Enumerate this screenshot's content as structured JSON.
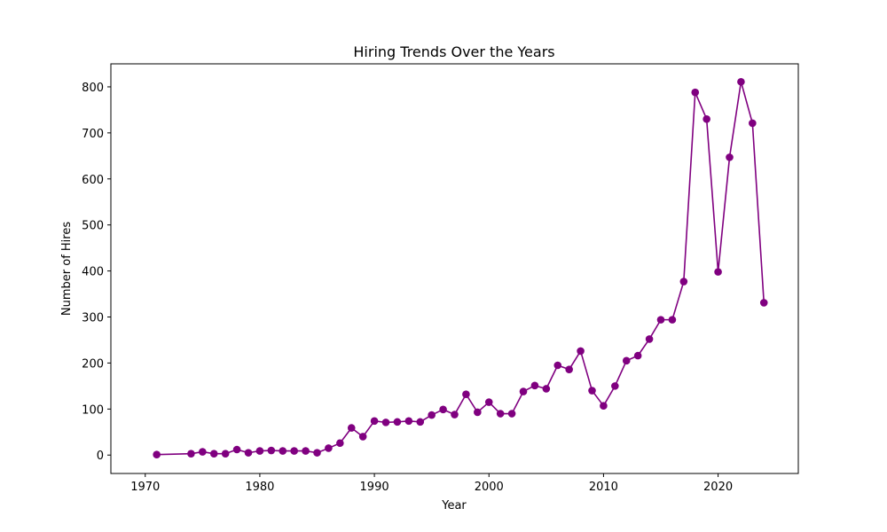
{
  "chart_data": {
    "type": "line",
    "title": "Hiring Trends Over the Years",
    "xlabel": "Year",
    "ylabel": "Number of Hires",
    "xlim": [
      1967,
      2027
    ],
    "ylim": [
      -40,
      850
    ],
    "xticks": [
      1970,
      1980,
      1990,
      2000,
      2010,
      2020
    ],
    "yticks": [
      0,
      100,
      200,
      300,
      400,
      500,
      600,
      700,
      800
    ],
    "grid": false,
    "marker": "circle",
    "color": "#800080",
    "series": [
      {
        "x": [
          1971,
          1974,
          1975,
          1976,
          1977,
          1978,
          1979,
          1980,
          1981,
          1982,
          1983,
          1984,
          1985,
          1986,
          1987,
          1988,
          1989,
          1990,
          1991,
          1992,
          1993,
          1994,
          1995,
          1996,
          1997,
          1998,
          1999,
          2000,
          2001,
          2002,
          2003,
          2004,
          2005,
          2006,
          2007,
          2008,
          2009,
          2010,
          2011,
          2012,
          2013,
          2014,
          2015,
          2016,
          2017,
          2018,
          2019,
          2020,
          2021,
          2022,
          2023,
          2024
        ],
        "y": [
          1,
          3,
          7,
          3,
          3,
          12,
          5,
          9,
          10,
          9,
          9,
          9,
          5,
          15,
          26,
          59,
          40,
          74,
          71,
          72,
          74,
          72,
          87,
          99,
          88,
          132,
          93,
          115,
          90,
          90,
          138,
          151,
          144,
          195,
          186,
          226,
          140,
          107,
          150,
          205,
          216,
          252,
          294,
          294,
          377,
          788,
          730,
          398,
          647,
          811,
          721,
          331
        ]
      }
    ]
  }
}
